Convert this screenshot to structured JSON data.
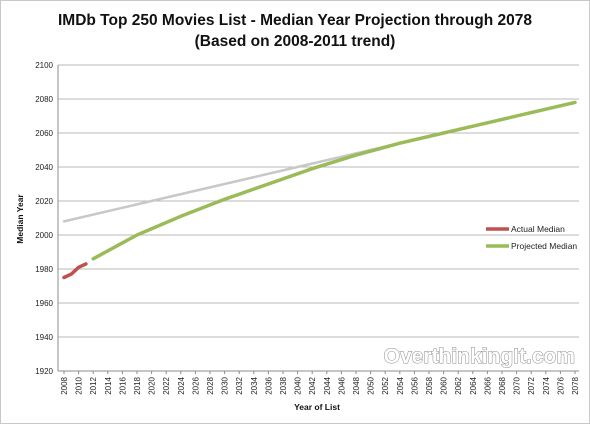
{
  "chart_data": {
    "type": "line",
    "title": "IMDb Top 250 Movies List - Median Year Projection through 2078",
    "subtitle": "(Based on 2008-2011 trend)",
    "xlabel": "Year of List",
    "ylabel": "Median Year",
    "xlim": [
      2008,
      2078
    ],
    "ylim": [
      1920,
      2100
    ],
    "x_ticks": [
      2008,
      2010,
      2012,
      2014,
      2016,
      2018,
      2020,
      2022,
      2024,
      2026,
      2028,
      2030,
      2032,
      2034,
      2036,
      2038,
      2040,
      2042,
      2044,
      2046,
      2048,
      2050,
      2052,
      2054,
      2056,
      2058,
      2060,
      2062,
      2064,
      2066,
      2068,
      2070,
      2072,
      2074,
      2076,
      2078
    ],
    "y_ticks": [
      1920,
      1940,
      1960,
      1980,
      2000,
      2020,
      2040,
      2060,
      2080,
      2100
    ],
    "grid": "horizontal",
    "legend_position": "right",
    "series": [
      {
        "name": "Actual Median",
        "color": "#c0504d",
        "x": [
          2008,
          2009,
          2010,
          2011
        ],
        "y": [
          1975,
          1977,
          1981,
          1983
        ]
      },
      {
        "name": "Projected Median",
        "color": "#9bbb59",
        "x": [
          2012,
          2018,
          2024,
          2030,
          2036,
          2042,
          2048,
          2054,
          2060,
          2066,
          2072,
          2078
        ],
        "y": [
          1986,
          2000,
          2011,
          2021,
          2030,
          2039,
          2047,
          2054,
          2060,
          2066,
          2072,
          2078
        ]
      },
      {
        "name": "",
        "color": "#c8c8c8",
        "x": [
          2008,
          2018,
          2028,
          2038,
          2048,
          2058,
          2068,
          2078
        ],
        "y": [
          2008,
          2018,
          2028,
          2038,
          2048,
          2058,
          2068,
          2078
        ]
      }
    ]
  },
  "watermark": "OverthinkingIt.com"
}
